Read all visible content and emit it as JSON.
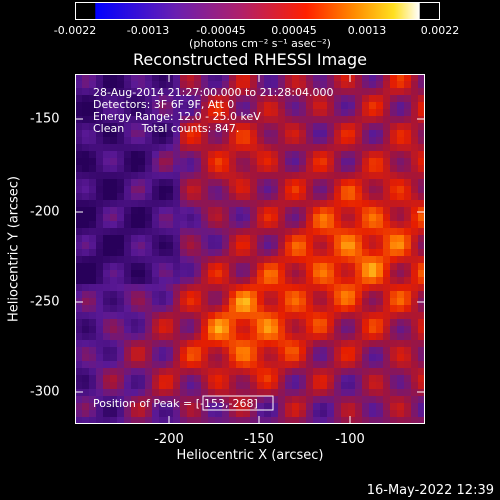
{
  "colorbar": {
    "ticks": [
      "-0.0022",
      "-0.0013",
      "-0.00045",
      "0.00045",
      "0.0013",
      "0.0022"
    ],
    "unit": "(photons cm⁻² s⁻¹ asec⁻²)",
    "range": [
      -0.0022,
      0.0022
    ]
  },
  "chart_data": {
    "type": "heatmap",
    "title": "Reconstructed RHESSI Image",
    "xlabel": "Heliocentric X (arcsec)",
    "ylabel": "Heliocentric Y (arcsec)",
    "xlim": [
      -248,
      -68
    ],
    "ylim": [
      -315,
      -130
    ],
    "x_ticks": [
      "-200",
      "-150",
      "-100"
    ],
    "y_ticks": [
      "-150",
      "-200",
      "-250",
      "-300"
    ],
    "colormap": "blue-purple-red-yellow-white",
    "peak": {
      "x": -153,
      "y": -268
    }
  },
  "annotations": {
    "time": "28-Aug-2014 21:27:00.000 to 21:28:04.000",
    "detectors": "Detectors: 3F 6F 9F, Att 0",
    "energy": "Energy Range: 12.0 - 25.0 keV",
    "method": "Clean     Total counts: 847.",
    "peak_text": "Position of Peak = [-153,-268]"
  },
  "footer": "16-May-2022 12:39"
}
